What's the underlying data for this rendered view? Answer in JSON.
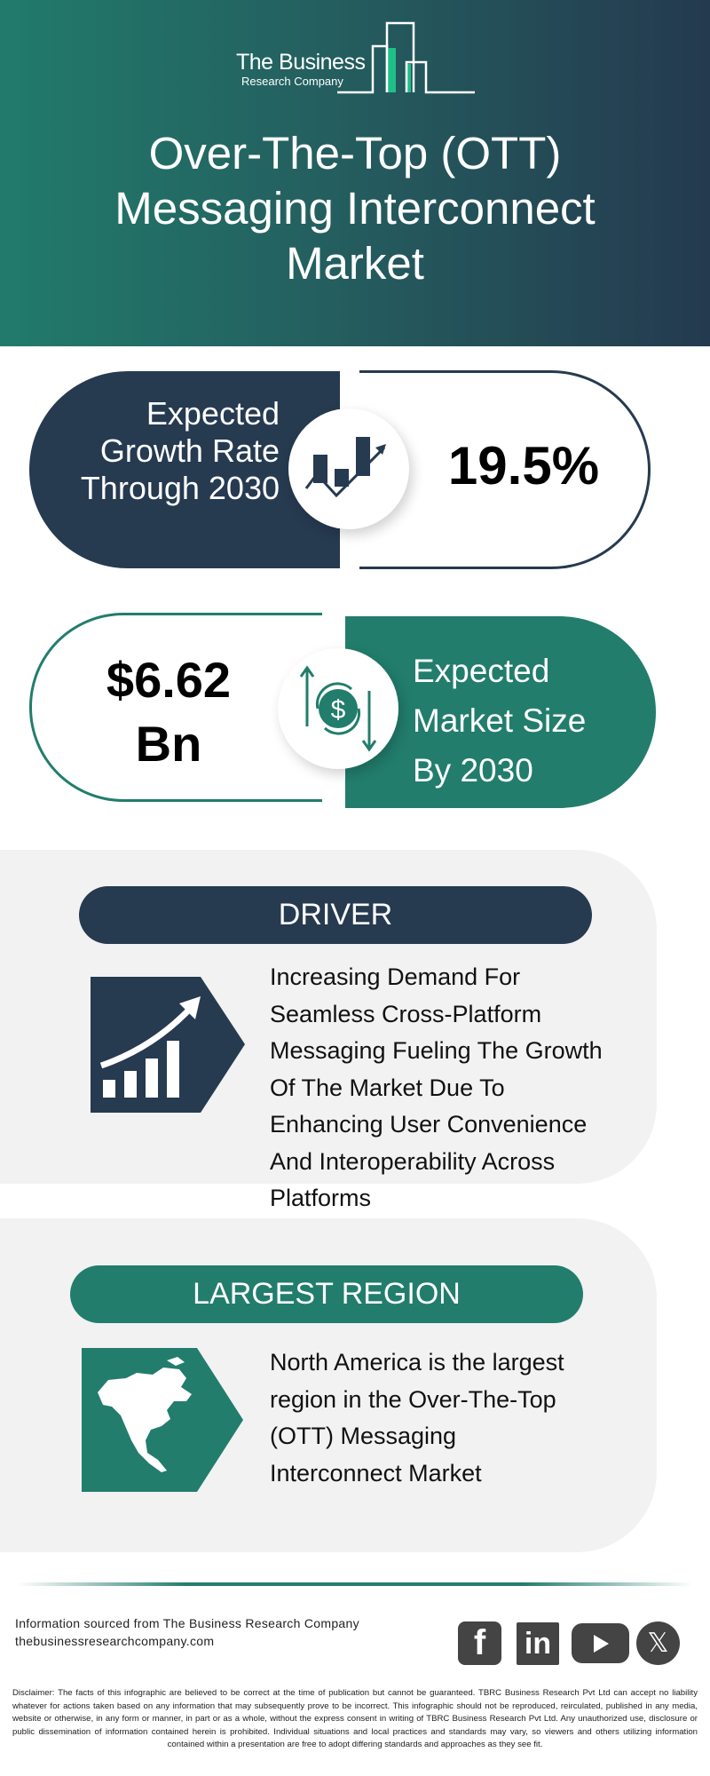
{
  "header": {
    "logo": {
      "line1": "The Business",
      "line2": "Research Company"
    },
    "title": "Over-The-Top (OTT) Messaging Interconnect Market"
  },
  "growth": {
    "label_lines": [
      "Expected",
      "Growth Rate",
      "Through 2030"
    ],
    "value": "19.5%",
    "icon": "growth-chart-icon"
  },
  "market_size": {
    "value_lines": [
      "$6.62",
      "Bn"
    ],
    "label_lines": [
      "Expected",
      "Market Size",
      "By 2030"
    ],
    "icon": "dollar-exchange-icon"
  },
  "driver": {
    "heading": "DRIVER",
    "icon": "rising-bar-chart-icon",
    "text_lines": [
      "Increasing Demand For",
      "Seamless Cross-Platform",
      "Messaging Fueling The Growth",
      "Of The Market Due To",
      "Enhancing User Convenience",
      "And Interoperability Across",
      "Platforms"
    ]
  },
  "region": {
    "heading": "LARGEST REGION",
    "icon": "north-america-map-icon",
    "text_lines": [
      "North America is the largest",
      "region in the Over-The-Top",
      "(OTT) Messaging",
      "Interconnect Market"
    ]
  },
  "footer": {
    "source": "Information sourced from The Business Research Company",
    "website": "thebusinessresearchcompany.com",
    "social": [
      "facebook-icon",
      "linkedin-icon",
      "youtube-icon",
      "x-icon"
    ],
    "disclaimer": "Disclaimer: The facts of this infographic are believed to be correct at the time of publication but cannot be guaranteed. TBRC Business Research Pvt Ltd can accept no liability whatever for actions taken based on any information that may subsequently prove to be incorrect. This infographic should not be reproduced, reirculated, published in any media, website or otherwise, in any form or manner, in part or as a whole, without the express consent in writing of TBRC Business Research Pvt Ltd. Any unauthorized use, disclosure or public dissemination of information contained herein is prohibited. Individual situations and local practices and standards may vary, so viewers and others utilizing information contained within a presentation are free to adopt differing standards and approaches as they see fit."
  },
  "colors": {
    "navy": "#263a50",
    "teal": "#227d6c",
    "panel": "#f2f2f2"
  }
}
